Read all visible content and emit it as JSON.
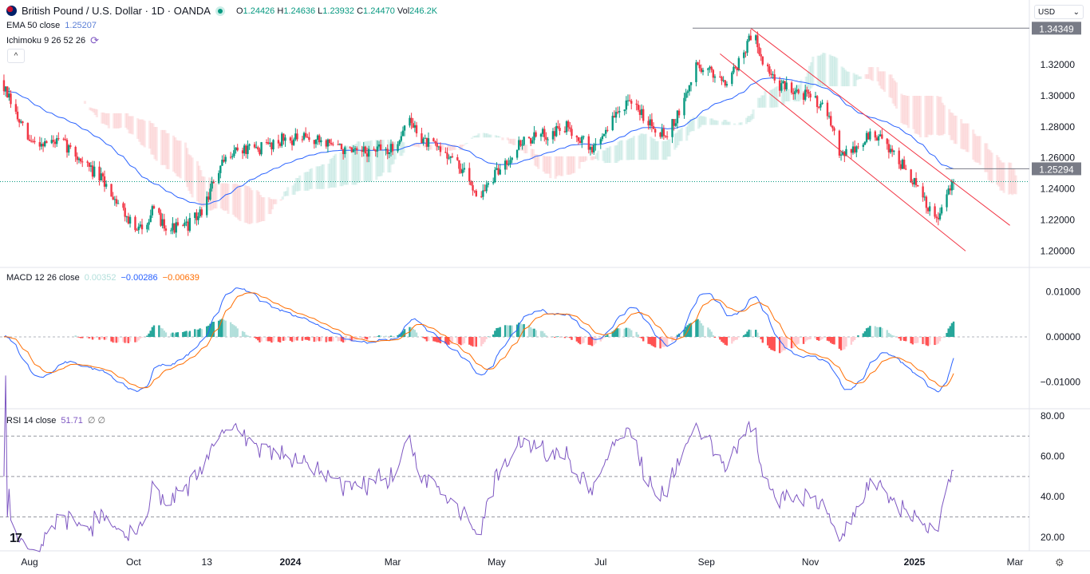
{
  "header": {
    "symbol_title": "British Pound / U.S. Dollar · 1D · OANDA",
    "ohlc": {
      "o_label": "O",
      "open": "1.24426",
      "h_label": "H",
      "high": "1.24636",
      "l_label": "L",
      "low": "1.23932",
      "c_label": "C",
      "close": "1.24470",
      "vol_label": "Vol",
      "volume": "246.2K"
    },
    "ema_label": "EMA 50 close",
    "ema_value": "1.25207",
    "ichimoku_label": "Ichimoku 9 26 52 26",
    "collapse_icon": "chevron-up-icon",
    "currency": "USD"
  },
  "price_axis": {
    "ticks": [
      "1.32000",
      "1.30000",
      "1.28000",
      "1.26000",
      "1.24000",
      "1.22000",
      "1.20000"
    ],
    "tick_values": [
      1.32,
      1.3,
      1.28,
      1.26,
      1.24,
      1.22,
      1.2
    ],
    "high_label": "1.34349",
    "high_value": 1.34349,
    "level_label": "1.25294",
    "level_value": 1.25294,
    "last_price": 1.2447
  },
  "macd": {
    "label": "MACD 12 26 close",
    "hist": "0.00352",
    "macd": "−0.00286",
    "signal": "−0.00639",
    "ticks": [
      "0.01000",
      "0.00000",
      "−0.01000"
    ],
    "tick_values": [
      0.01,
      0,
      -0.01
    ]
  },
  "rsi": {
    "label": "RSI 14 close",
    "value": "51.71",
    "extra": "∅ ∅",
    "ticks": [
      "80.00",
      "60.00",
      "40.00",
      "20.00"
    ],
    "tick_values": [
      80,
      60,
      40,
      20
    ],
    "bands": [
      70,
      50,
      30
    ]
  },
  "time_axis": {
    "labels": [
      {
        "text": "Aug",
        "date": "2023-08-01",
        "bold": false
      },
      {
        "text": "Oct",
        "date": "2023-10-01",
        "bold": false
      },
      {
        "text": "13",
        "date": "2023-11-13",
        "bold": false
      },
      {
        "text": "2024",
        "date": "2024-01-01",
        "bold": true
      },
      {
        "text": "Mar",
        "date": "2024-03-01",
        "bold": false
      },
      {
        "text": "May",
        "date": "2024-05-01",
        "bold": false
      },
      {
        "text": "Jul",
        "date": "2024-07-01",
        "bold": false
      },
      {
        "text": "Sep",
        "date": "2024-09-01",
        "bold": false
      },
      {
        "text": "Nov",
        "date": "2024-11-01",
        "bold": false
      },
      {
        "text": "2025",
        "date": "2025-01-01",
        "bold": true
      },
      {
        "text": "Mar",
        "date": "2025-03-01",
        "bold": false
      }
    ]
  },
  "colors": {
    "up": "#089981",
    "down": "#f23645",
    "ema": "#2962ff",
    "macd": "#2962ff",
    "signal": "#ff6d00",
    "rsi": "#7e57c2",
    "channel": "#f23645"
  },
  "chart_data": {
    "type": "candlestick",
    "symbol": "GBPUSD",
    "approx_closes": [
      [
        "2023-07-15",
        1.31
      ],
      [
        "2023-07-25",
        1.285
      ],
      [
        "2023-08-01",
        1.27
      ],
      [
        "2023-08-20",
        1.27
      ],
      [
        "2023-08-30",
        1.26
      ],
      [
        "2023-09-13",
        1.245
      ],
      [
        "2023-09-23",
        1.23
      ],
      [
        "2023-10-03",
        1.212
      ],
      [
        "2023-10-12",
        1.225
      ],
      [
        "2023-10-22",
        1.215
      ],
      [
        "2023-10-31",
        1.215
      ],
      [
        "2023-11-10",
        1.225
      ],
      [
        "2023-11-19",
        1.25
      ],
      [
        "2023-11-28",
        1.265
      ],
      [
        "2023-12-12",
        1.265
      ],
      [
        "2023-12-27",
        1.272
      ],
      [
        "2024-01-10",
        1.272
      ],
      [
        "2024-01-24",
        1.27
      ],
      [
        "2024-02-07",
        1.262
      ],
      [
        "2024-02-21",
        1.265
      ],
      [
        "2024-03-01",
        1.265
      ],
      [
        "2024-03-10",
        1.285
      ],
      [
        "2024-03-20",
        1.27
      ],
      [
        "2024-04-03",
        1.262
      ],
      [
        "2024-04-12",
        1.25
      ],
      [
        "2024-04-21",
        1.235
      ],
      [
        "2024-05-01",
        1.25
      ],
      [
        "2024-05-15",
        1.27
      ],
      [
        "2024-05-29",
        1.275
      ],
      [
        "2024-06-12",
        1.28
      ],
      [
        "2024-06-26",
        1.265
      ],
      [
        "2024-07-05",
        1.28
      ],
      [
        "2024-07-15",
        1.295
      ],
      [
        "2024-07-24",
        1.29
      ],
      [
        "2024-08-02",
        1.28
      ],
      [
        "2024-08-08",
        1.275
      ],
      [
        "2024-08-17",
        1.29
      ],
      [
        "2024-08-26",
        1.32
      ],
      [
        "2024-09-04",
        1.315
      ],
      [
        "2024-09-13",
        1.31
      ],
      [
        "2024-09-22",
        1.325
      ],
      [
        "2024-09-28",
        1.342
      ],
      [
        "2024-10-05",
        1.32
      ],
      [
        "2024-10-12",
        1.307
      ],
      [
        "2024-10-21",
        1.305
      ],
      [
        "2024-10-30",
        1.3
      ],
      [
        "2024-11-08",
        1.295
      ],
      [
        "2024-11-18",
        1.265
      ],
      [
        "2024-11-27",
        1.265
      ],
      [
        "2024-12-06",
        1.275
      ],
      [
        "2024-12-15",
        1.27
      ],
      [
        "2024-12-25",
        1.255
      ],
      [
        "2025-01-03",
        1.24
      ],
      [
        "2025-01-10",
        1.225
      ],
      [
        "2025-01-14",
        1.22
      ],
      [
        "2025-01-20",
        1.235
      ],
      [
        "2025-01-24",
        1.2447
      ]
    ],
    "channel": {
      "upper": [
        [
          "2024-09-27",
          1.3435
        ],
        [
          "2025-02-26",
          1.2165
        ]
      ],
      "lower": [
        [
          "2024-09-09",
          1.327
        ],
        [
          "2025-01-31",
          1.2
        ]
      ]
    },
    "ylim": [
      1.195,
      1.345
    ]
  }
}
